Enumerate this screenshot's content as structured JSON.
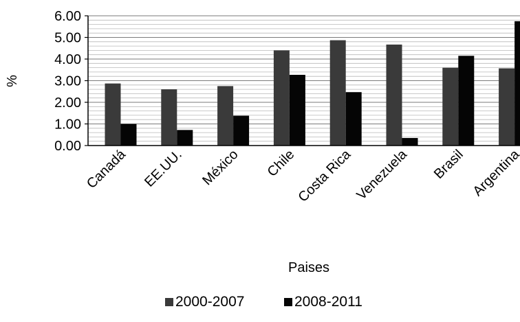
{
  "chart_data": {
    "type": "bar",
    "title": "",
    "xlabel": "Paises",
    "ylabel": "%",
    "ylim": [
      0,
      6
    ],
    "yticks": [
      "0.00",
      "1.00",
      "2.00",
      "3.00",
      "4.00",
      "5.00",
      "6.00"
    ],
    "grid": true,
    "legend_position": "bottom",
    "categories": [
      "Canadá",
      "EE.UU.",
      "México",
      "Chile",
      "Costa Rica",
      "Venezuela",
      "Brasil",
      "Argentina"
    ],
    "series": [
      {
        "name": "2000-2007",
        "color": "#3a3a3a",
        "values": [
          2.87,
          2.6,
          2.75,
          4.4,
          4.87,
          4.67,
          3.6,
          3.57
        ]
      },
      {
        "name": "2008-2011",
        "color": "#050505",
        "values": [
          1.0,
          0.72,
          1.38,
          3.27,
          2.47,
          0.35,
          4.15,
          5.75
        ]
      }
    ]
  }
}
